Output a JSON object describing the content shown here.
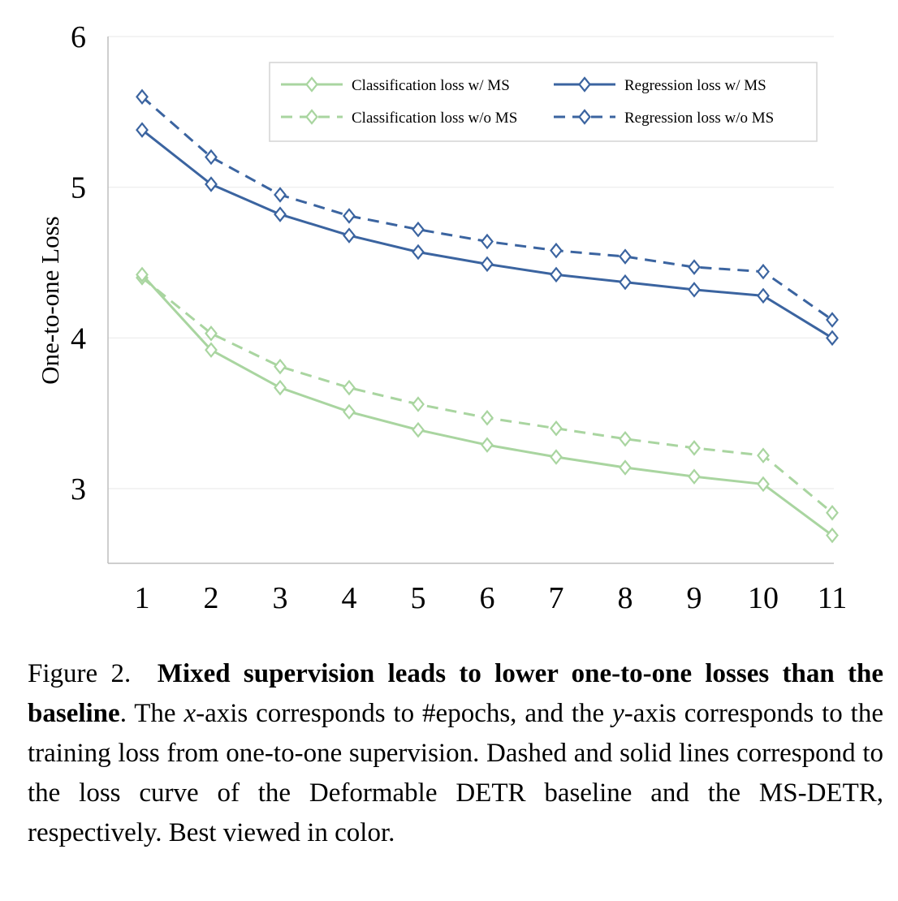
{
  "chart_data": {
    "type": "line",
    "ylabel": "One-to-one Loss",
    "xlabel": "",
    "x": [
      1,
      2,
      3,
      4,
      5,
      6,
      7,
      8,
      9,
      10,
      11
    ],
    "x_tick_labels": [
      "1",
      "2",
      "3",
      "4",
      "5",
      "6",
      "7",
      "8",
      "9",
      "10",
      "11"
    ],
    "y_ticks": [
      3,
      4,
      5,
      6
    ],
    "y_tick_labels": [
      "3",
      "4",
      "5",
      "6"
    ],
    "ylim": [
      2.5,
      6
    ],
    "grid": "horizontal",
    "legend_position": "top-right",
    "series": [
      {
        "name": "Classification loss w/ MS",
        "style": "solid",
        "color": "#a9d5a0",
        "values": [
          4.42,
          3.92,
          3.67,
          3.51,
          3.39,
          3.29,
          3.21,
          3.14,
          3.08,
          3.03,
          2.69
        ]
      },
      {
        "name": "Regression loss w/ MS",
        "style": "solid",
        "color": "#3b64a0",
        "values": [
          5.38,
          5.02,
          4.82,
          4.68,
          4.57,
          4.49,
          4.42,
          4.37,
          4.32,
          4.28,
          4.0
        ]
      },
      {
        "name": "Classification loss w/o MS",
        "style": "dashed",
        "color": "#a9d5a0",
        "values": [
          4.4,
          4.03,
          3.81,
          3.67,
          3.56,
          3.47,
          3.4,
          3.33,
          3.27,
          3.22,
          2.84
        ]
      },
      {
        "name": "Regression loss w/o MS",
        "style": "dashed",
        "color": "#3b64a0",
        "values": [
          5.6,
          5.2,
          4.95,
          4.81,
          4.72,
          4.64,
          4.58,
          4.54,
          4.47,
          4.44,
          4.12
        ]
      }
    ]
  },
  "caption": {
    "label": "Figure 2.",
    "bold_text": "Mixed supervision leads to lower one-to-one losses than the baseline",
    "text_1": ". The ",
    "math_x": "x",
    "text_2": "-axis corresponds to #epochs, and the ",
    "math_y": "y",
    "text_3": "-axis corresponds to the training loss from one-to-one supervision. Dashed and solid lines correspond to the loss curve of the Deformable DETR baseline and the MS-DETR, respectively. Best viewed in color."
  }
}
